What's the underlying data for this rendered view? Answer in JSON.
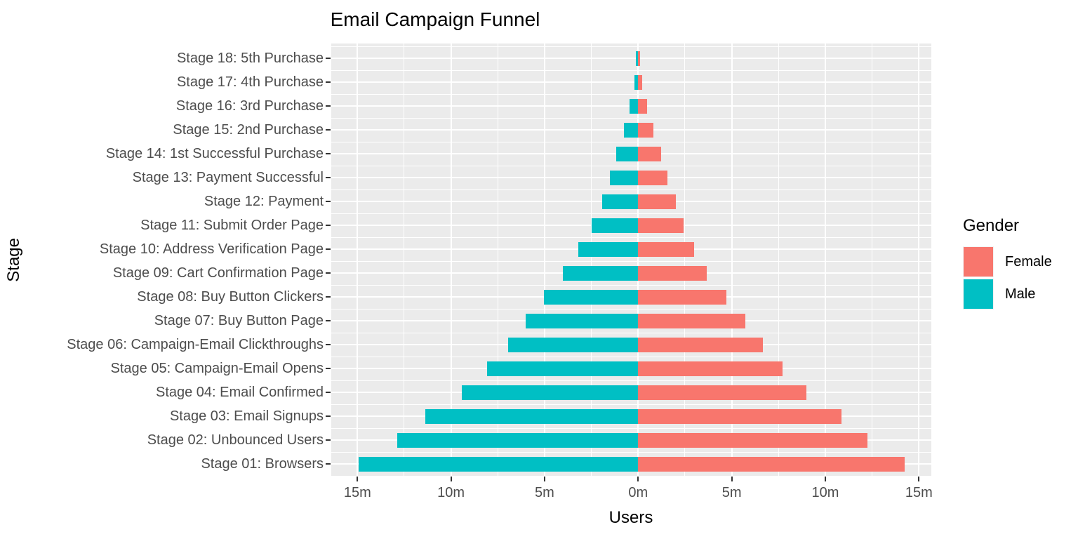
{
  "chart_data": {
    "type": "bar",
    "variant": "horizontal diverging pyramid funnel (two-sided bars around zero)",
    "title": "Email Campaign Funnel",
    "xlabel": "Users",
    "ylabel": "Stage",
    "units": "millions of users",
    "x_tick_labels": [
      "15m",
      "10m",
      "5m",
      "0m",
      "5m",
      "10m",
      "15m"
    ],
    "x_tick_values_millions": [
      -15,
      -10,
      -5,
      0,
      5,
      10,
      15
    ],
    "xlim_millions": [
      -16.4,
      15.7
    ],
    "grid": "white major gridlines at 5m and row centers, white minor gridlines at 2.5m and row boundaries, on gray panel",
    "legend": {
      "title": "Gender",
      "position": "right",
      "entries": [
        {
          "label": "Female",
          "color": "#F8766D"
        },
        {
          "label": "Male",
          "color": "#00BFC4"
        }
      ]
    },
    "categories_top_to_bottom": [
      "Stage 18: 5th Purchase",
      "Stage 17: 4th Purchase",
      "Stage 16: 3rd Purchase",
      "Stage 15: 2nd Purchase",
      "Stage 14: 1st Successful Purchase",
      "Stage 13: Payment Successful",
      "Stage 12: Payment",
      "Stage 11: Submit Order Page",
      "Stage 10: Address Verification Page",
      "Stage 09: Cart Confirmation Page",
      "Stage 08: Buy Button Clickers",
      "Stage 07: Buy Button Page",
      "Stage 06: Campaign-Email Clickthroughs",
      "Stage 05: Campaign-Email Opens",
      "Stage 04: Email Confirmed",
      "Stage 03: Email Signups",
      "Stage 02: Unbounced Users",
      "Stage 01: Browsers"
    ],
    "series": [
      {
        "name": "Male",
        "color": "#00BFC4",
        "direction": "left-of-zero",
        "values_millions": [
          0.11,
          0.21,
          0.47,
          0.77,
          1.16,
          1.5,
          1.91,
          2.48,
          3.2,
          4.01,
          5.03,
          6.01,
          6.94,
          8.06,
          9.41,
          11.37,
          12.87,
          14.94
        ]
      },
      {
        "name": "Female",
        "color": "#F8766D",
        "direction": "right-of-zero",
        "values_millions": [
          0.1,
          0.22,
          0.49,
          0.82,
          1.23,
          1.56,
          2.0,
          2.44,
          2.99,
          3.65,
          4.71,
          5.72,
          6.65,
          7.71,
          8.99,
          10.86,
          12.24,
          14.22
        ]
      }
    ]
  },
  "style": {
    "page_bg": "#FFFFFF",
    "panel_bg": "#EBEBEB",
    "grid_color": "#FFFFFF",
    "tick_label_color": "#4D4D4D",
    "tick_mark_color": "#333333",
    "title_color": "#000000",
    "legend_key_bg": "#F2F2F2"
  }
}
